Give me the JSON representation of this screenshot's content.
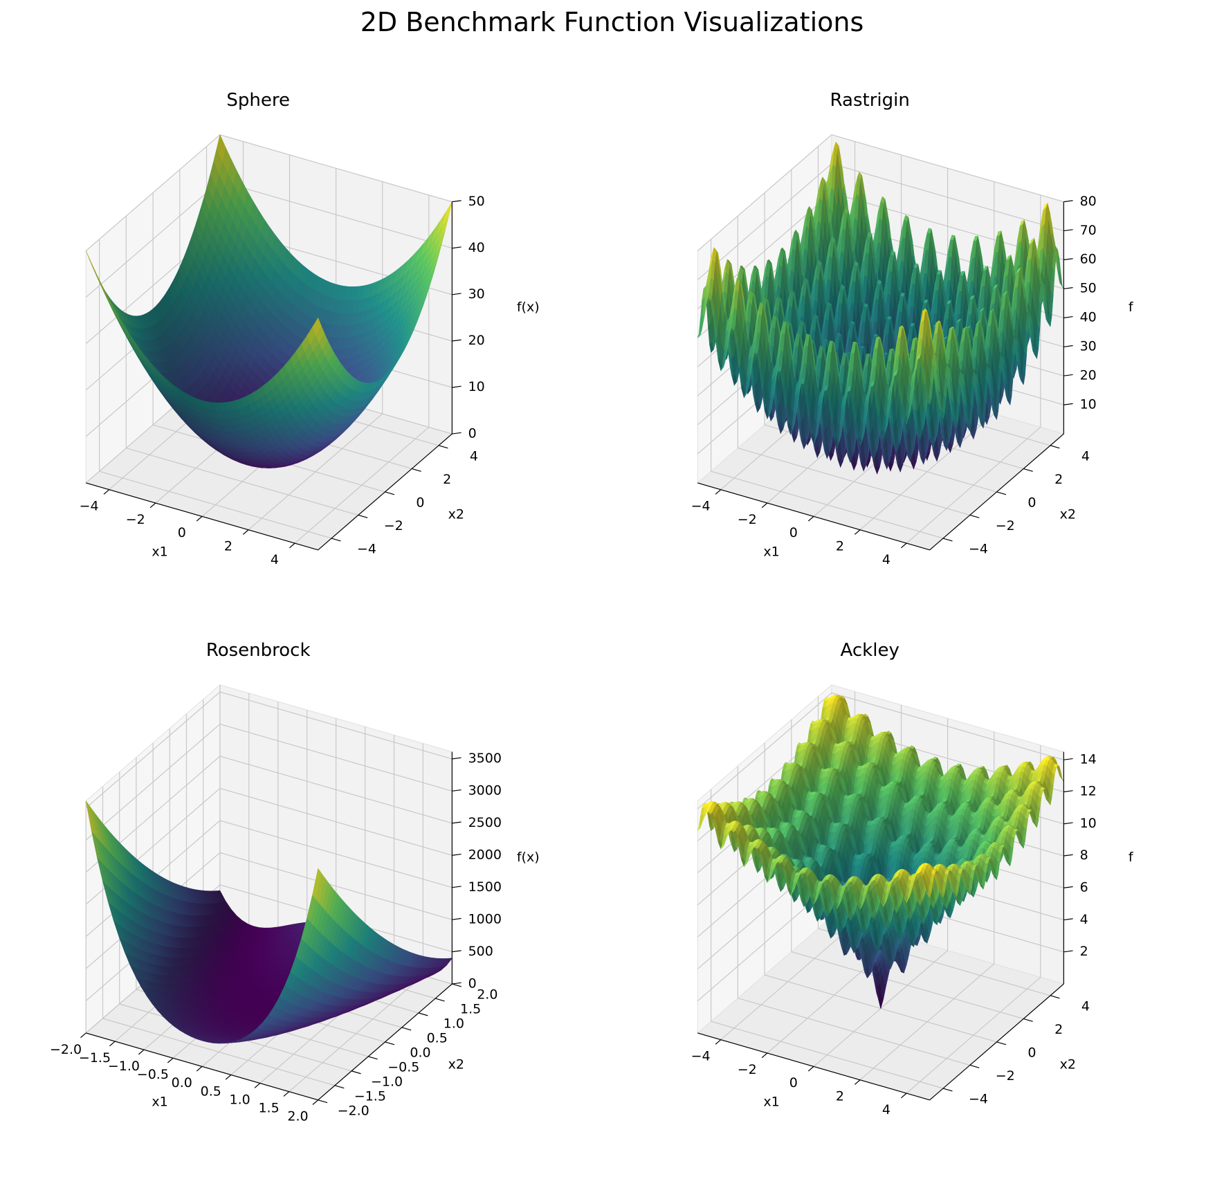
{
  "figure": {
    "title": "2D Benchmark Function Visualizations"
  },
  "colormap": {
    "name": "viridis",
    "stops": [
      "#440154",
      "#3b528b",
      "#21918c",
      "#5ec962",
      "#fde725"
    ]
  },
  "chart_data": [
    {
      "type": "surface",
      "function": "sphere",
      "title": "Sphere",
      "xlabel": "x1",
      "ylabel": "x2",
      "zlabel": "f(x)",
      "xlim": [
        -5,
        5
      ],
      "ylim": [
        -5,
        5
      ],
      "zlim": [
        0,
        50
      ],
      "xticks": [
        -4,
        -2,
        0,
        2,
        4
      ],
      "yticks": [
        -4,
        -2,
        0,
        2,
        4
      ],
      "zticks": [
        0,
        10,
        20,
        30,
        40,
        50
      ],
      "xtick_labels": [
        "−4",
        "−2",
        "0",
        "2",
        "4"
      ],
      "ytick_labels": [
        "−4",
        "−2",
        "0",
        "2",
        "4"
      ],
      "ztick_labels": [
        "0",
        "10",
        "20",
        "30",
        "40",
        "50"
      ],
      "grid": true
    },
    {
      "type": "surface",
      "function": "rastrigin",
      "title": "Rastrigin",
      "xlabel": "x1",
      "ylabel": "x2",
      "zlabel": "f",
      "xlim": [
        -5,
        5
      ],
      "ylim": [
        -5,
        5
      ],
      "zlim": [
        0,
        80
      ],
      "xticks": [
        -4,
        -2,
        0,
        2,
        4
      ],
      "yticks": [
        -4,
        -2,
        0,
        2,
        4
      ],
      "zticks": [
        10,
        20,
        30,
        40,
        50,
        60,
        70,
        80
      ],
      "xtick_labels": [
        "−4",
        "−2",
        "0",
        "2",
        "4"
      ],
      "ytick_labels": [
        "−4",
        "−2",
        "0",
        "2",
        "4"
      ],
      "ztick_labels": [
        "10",
        "20",
        "30",
        "40",
        "50",
        "60",
        "70",
        "80"
      ],
      "grid": true
    },
    {
      "type": "surface",
      "function": "rosenbrock",
      "title": "Rosenbrock",
      "xlabel": "x1",
      "ylabel": "x2",
      "zlabel": "f(x)",
      "xlim": [
        -2,
        2
      ],
      "ylim": [
        -2,
        2
      ],
      "zlim": [
        0,
        3610
      ],
      "xticks": [
        -2,
        -1.5,
        -1,
        -0.5,
        0,
        0.5,
        1,
        1.5,
        2
      ],
      "yticks": [
        -2,
        -1.5,
        -1,
        -0.5,
        0,
        0.5,
        1,
        1.5,
        2
      ],
      "zticks": [
        0,
        500,
        1000,
        1500,
        2000,
        2500,
        3000,
        3500
      ],
      "xtick_labels": [
        "−2.0",
        "−1.5",
        "−1.0",
        "−0.5",
        "0.0",
        "0.5",
        "1.0",
        "1.5",
        "2.0"
      ],
      "ytick_labels": [
        "−2.0",
        "−1.5",
        "−1.0",
        "−0.5",
        "0.0",
        "0.5",
        "1.0",
        "1.5",
        "2.0"
      ],
      "ztick_labels": [
        "0",
        "500",
        "1000",
        "1500",
        "2000",
        "2500",
        "3000",
        "3500"
      ],
      "grid": true
    },
    {
      "type": "surface",
      "function": "ackley",
      "title": "Ackley",
      "xlabel": "x1",
      "ylabel": "x2",
      "zlabel": "f",
      "xlim": [
        -5,
        5
      ],
      "ylim": [
        -5,
        5
      ],
      "zlim": [
        0,
        14.5
      ],
      "xticks": [
        -4,
        -2,
        0,
        2,
        4
      ],
      "yticks": [
        -4,
        -2,
        0,
        2,
        4
      ],
      "zticks": [
        2,
        4,
        6,
        8,
        10,
        12,
        14
      ],
      "xtick_labels": [
        "−4",
        "−2",
        "0",
        "2",
        "4"
      ],
      "ytick_labels": [
        "−4",
        "−2",
        "0",
        "2",
        "4"
      ],
      "ztick_labels": [
        "2",
        "4",
        "6",
        "8",
        "10",
        "12",
        "14"
      ],
      "grid": true
    }
  ]
}
